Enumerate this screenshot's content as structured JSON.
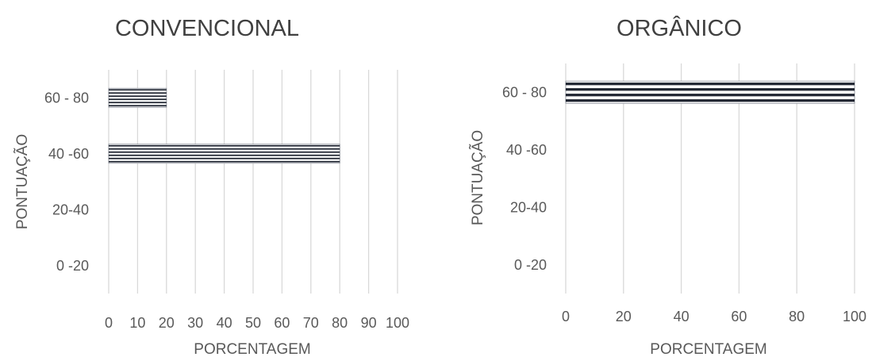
{
  "chart_data": [
    {
      "type": "bar",
      "orientation": "horizontal",
      "title": "CONVENCIONAL",
      "xlabel": "PORCENTAGEM",
      "ylabel": "PONTUAÇÃO",
      "categories": [
        "0 -20",
        "20-40",
        "40 -60",
        "60 - 80"
      ],
      "values": [
        0,
        0,
        80,
        20
      ],
      "xlim": [
        0,
        100
      ],
      "xticks": [
        0,
        10,
        20,
        30,
        40,
        50,
        60,
        70,
        80,
        90,
        100
      ],
      "grid": "vertical",
      "bar_fill": "horizontal stripes",
      "colors": {
        "bar": "#1f2430",
        "grid": "#d9d9d9",
        "text": "#595959"
      }
    },
    {
      "type": "bar",
      "orientation": "horizontal",
      "title": "ORGÂNICO",
      "xlabel": "PORCENTAGEM",
      "ylabel": "PONTUAÇÃO",
      "categories": [
        "0 -20",
        "20-40",
        "40 -60",
        "60 - 80"
      ],
      "values": [
        0,
        0,
        0,
        100
      ],
      "xlim": [
        0,
        100
      ],
      "xticks": [
        0,
        20,
        40,
        60,
        80,
        100
      ],
      "grid": "vertical",
      "bar_fill": "horizontal stripes",
      "colors": {
        "bar": "#1f2430",
        "grid": "#d9d9d9",
        "text": "#595959"
      }
    }
  ]
}
